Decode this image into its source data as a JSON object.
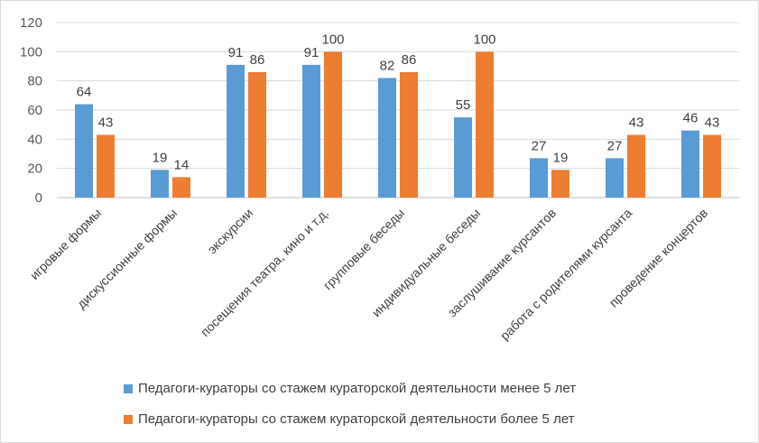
{
  "chart_data": {
    "type": "bar",
    "categories": [
      "игровые формы",
      "дискуссионные формы",
      "экскурсии",
      "посещения театра, кино и т.д.",
      "групповые беседы",
      "индивидуальные беседы",
      "заслушивание курсантов",
      "работа с родителями курсанта",
      "проведение концертов"
    ],
    "series": [
      {
        "name": "Педагоги-кураторы со стажем кураторской деятельности менее 5 лет",
        "color": "#5b9bd5",
        "values": [
          64,
          19,
          91,
          91,
          82,
          55,
          27,
          27,
          46
        ]
      },
      {
        "name": "Педагоги-кураторы со стажем кураторской деятельности более 5 лет",
        "color": "#ed7d31",
        "values": [
          43,
          14,
          86,
          100,
          86,
          100,
          19,
          43,
          43
        ]
      }
    ],
    "title": "",
    "xlabel": "",
    "ylabel": "",
    "ylim": [
      0,
      120
    ],
    "yticks": [
      0,
      20,
      40,
      60,
      80,
      100,
      120
    ],
    "grid": true,
    "legend_position": "bottom"
  }
}
